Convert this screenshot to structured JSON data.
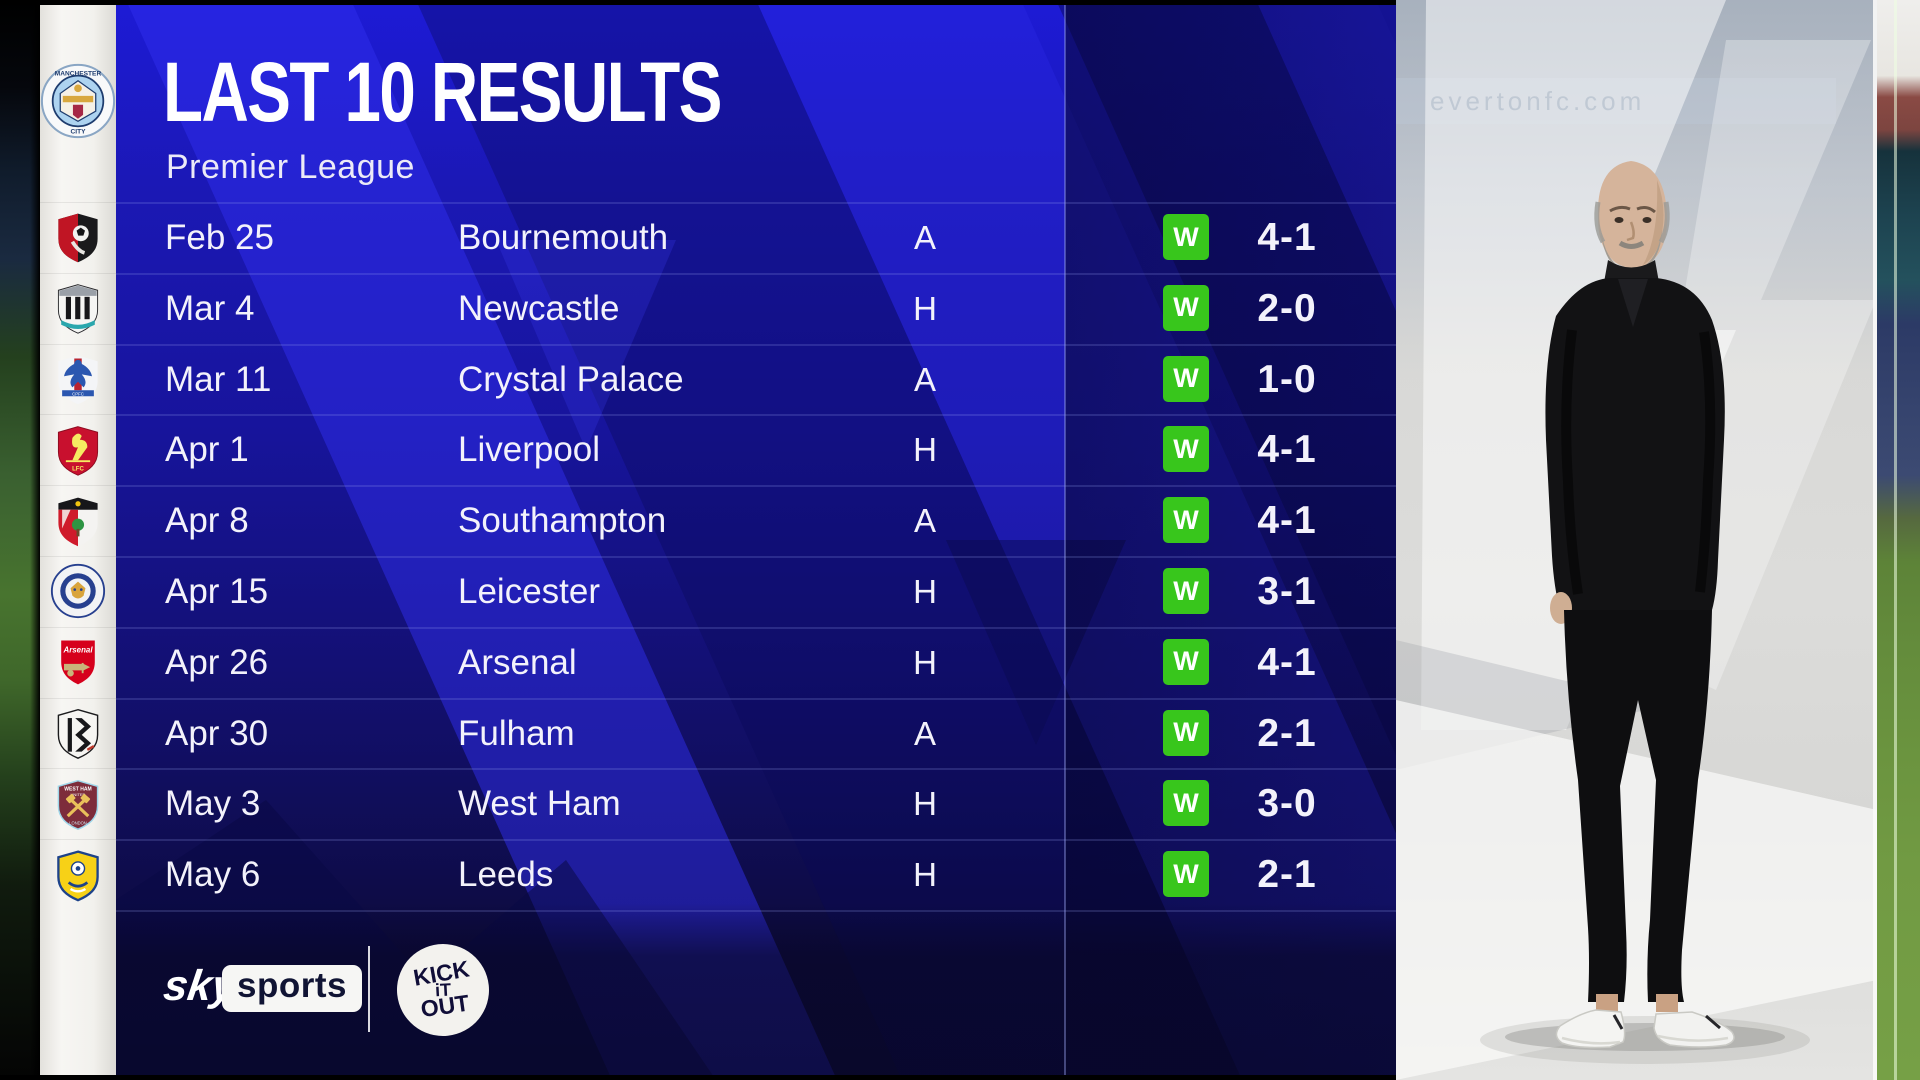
{
  "header": {
    "title": "LAST 10 RESULTS",
    "subtitle": "Premier League"
  },
  "team": {
    "name": "Manchester City",
    "badge": "manchester-city"
  },
  "results": [
    {
      "date": "Feb 25",
      "opponent": "Bournemouth",
      "venue": "A",
      "outcome": "W",
      "score": "4-1",
      "badge": "bournemouth"
    },
    {
      "date": "Mar 4",
      "opponent": "Newcastle",
      "venue": "H",
      "outcome": "W",
      "score": "2-0",
      "badge": "newcastle"
    },
    {
      "date": "Mar 11",
      "opponent": "Crystal Palace",
      "venue": "A",
      "outcome": "W",
      "score": "1-0",
      "badge": "crystal-palace"
    },
    {
      "date": "Apr 1",
      "opponent": "Liverpool",
      "venue": "H",
      "outcome": "W",
      "score": "4-1",
      "badge": "liverpool"
    },
    {
      "date": "Apr 8",
      "opponent": "Southampton",
      "venue": "A",
      "outcome": "W",
      "score": "4-1",
      "badge": "southampton"
    },
    {
      "date": "Apr 15",
      "opponent": "Leicester",
      "venue": "H",
      "outcome": "W",
      "score": "3-1",
      "badge": "leicester"
    },
    {
      "date": "Apr 26",
      "opponent": "Arsenal",
      "venue": "H",
      "outcome": "W",
      "score": "4-1",
      "badge": "arsenal"
    },
    {
      "date": "Apr 30",
      "opponent": "Fulham",
      "venue": "A",
      "outcome": "W",
      "score": "2-1",
      "badge": "fulham"
    },
    {
      "date": "May 3",
      "opponent": "West Ham",
      "venue": "H",
      "outcome": "W",
      "score": "3-0",
      "badge": "west-ham"
    },
    {
      "date": "May 6",
      "opponent": "Leeds",
      "venue": "H",
      "outcome": "W",
      "score": "2-1",
      "badge": "leeds"
    }
  ],
  "footer": {
    "sky": "sky",
    "sports": "sports",
    "kick_it_out": [
      "KICK",
      "iT",
      "OUT"
    ]
  },
  "photo": {
    "ad_text": "evertonfc.com"
  },
  "colors": {
    "win_green": "#38c61c",
    "panel_blue_bright": "#2f2eee",
    "panel_blue_dark": "#131073",
    "text_white": "#f3f2fb"
  }
}
